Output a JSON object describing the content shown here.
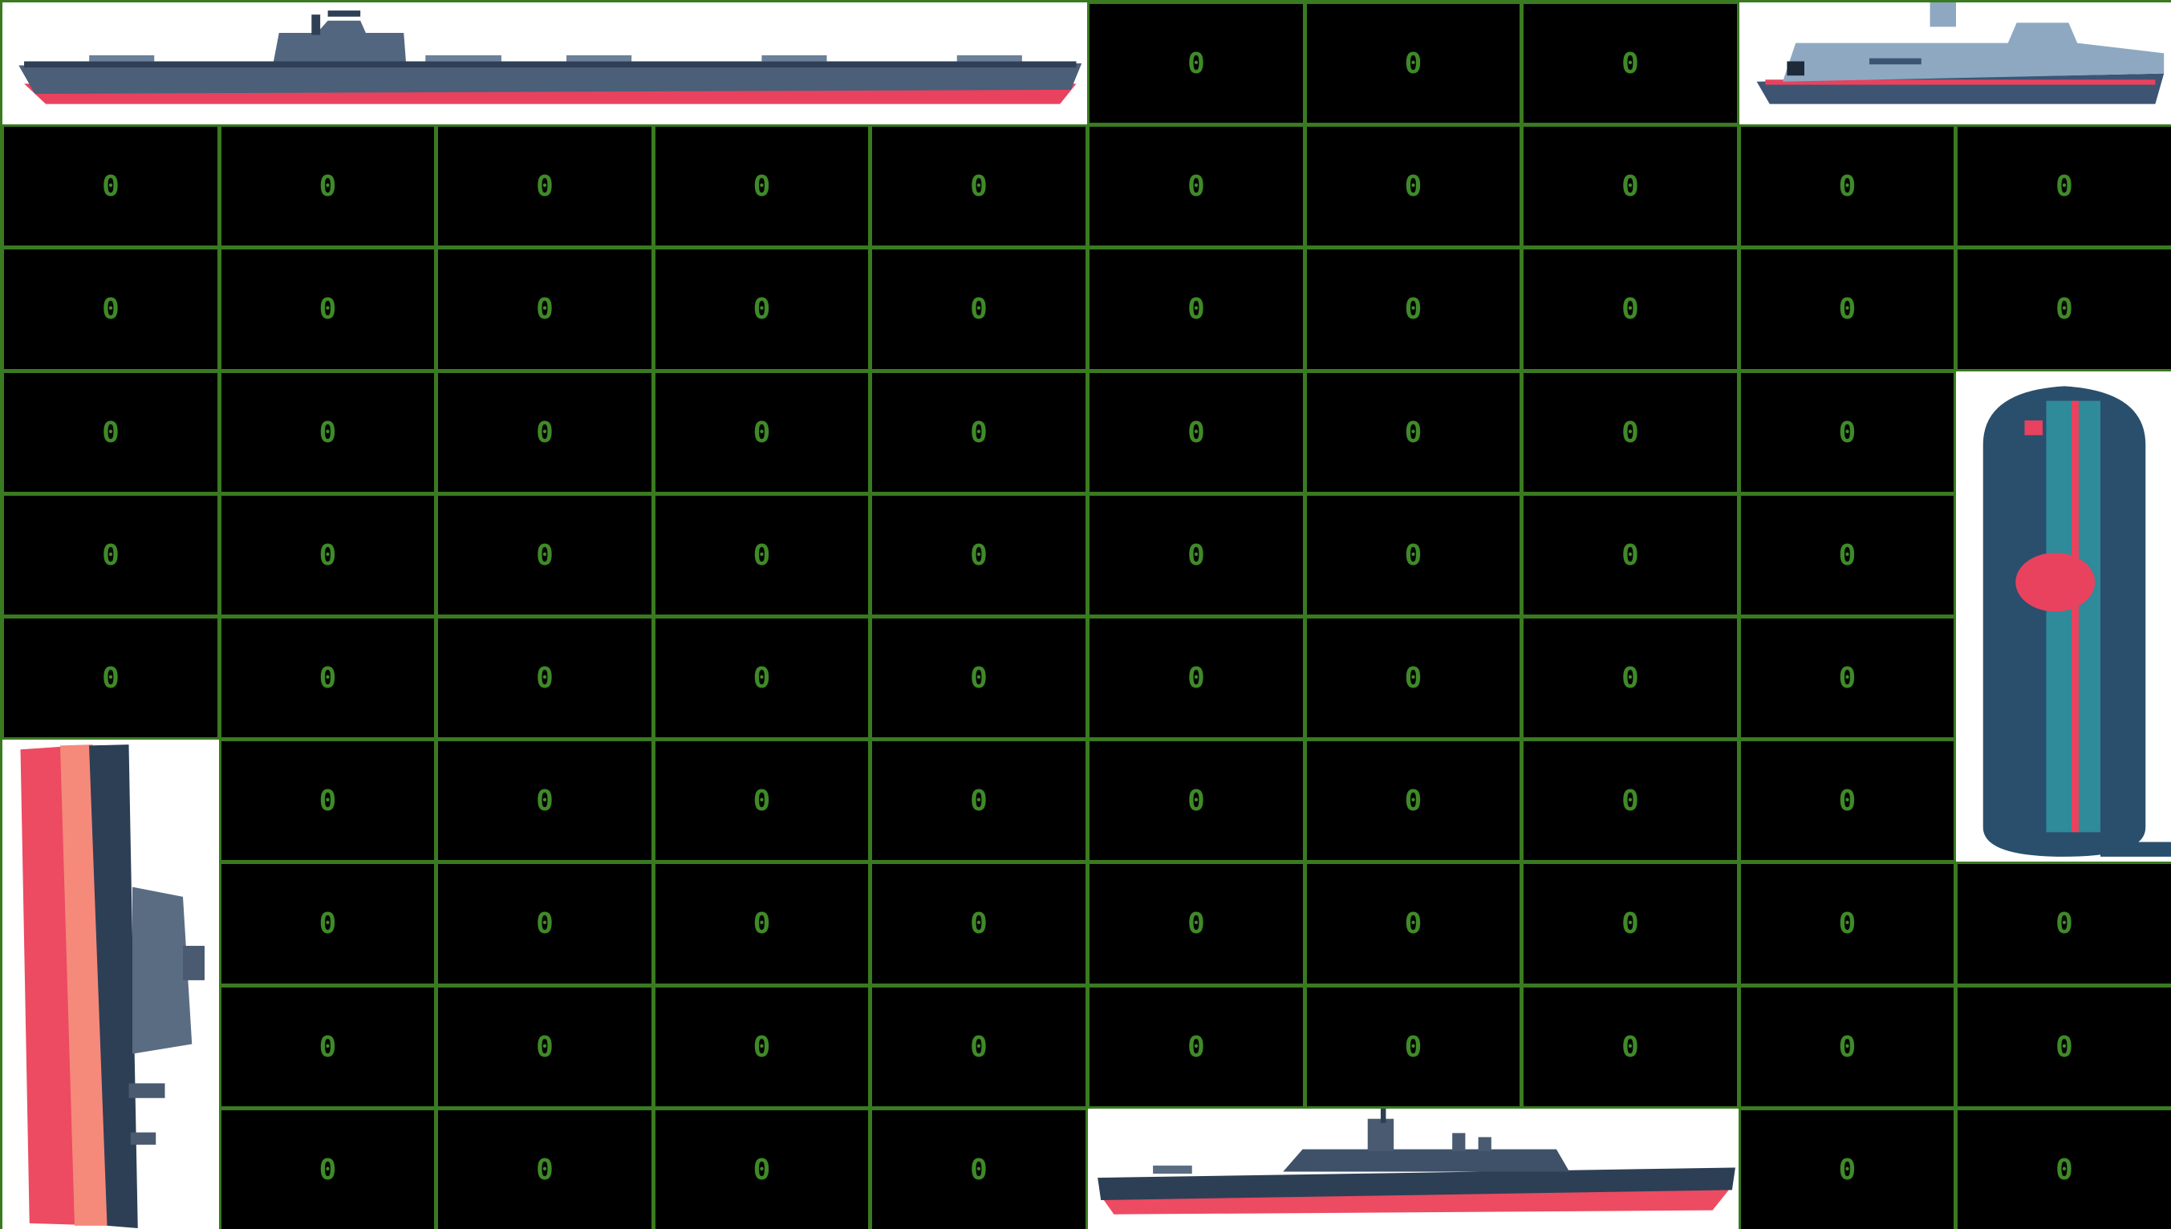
{
  "game": {
    "grid": {
      "rows": 10,
      "cols": 10
    },
    "cell_symbol": "0",
    "colors": {
      "cell_background": "#000000",
      "grid_line": "#3a7a20",
      "cell_text": "#3f8a28",
      "ship_background": "#ffffff"
    },
    "ships": [
      {
        "name": "aircraft-carrier",
        "orientation": "horizontal",
        "row": 0,
        "col": 0,
        "length": 5
      },
      {
        "name": "patrol-boat",
        "orientation": "horizontal",
        "row": 0,
        "col": 8,
        "length": 2
      },
      {
        "name": "submarine",
        "orientation": "vertical",
        "row": 3,
        "col": 9,
        "length": 4
      },
      {
        "name": "battleship",
        "orientation": "vertical",
        "row": 6,
        "col": 0,
        "length": 4
      },
      {
        "name": "destroyer",
        "orientation": "horizontal",
        "row": 9,
        "col": 5,
        "length": 3
      }
    ]
  }
}
